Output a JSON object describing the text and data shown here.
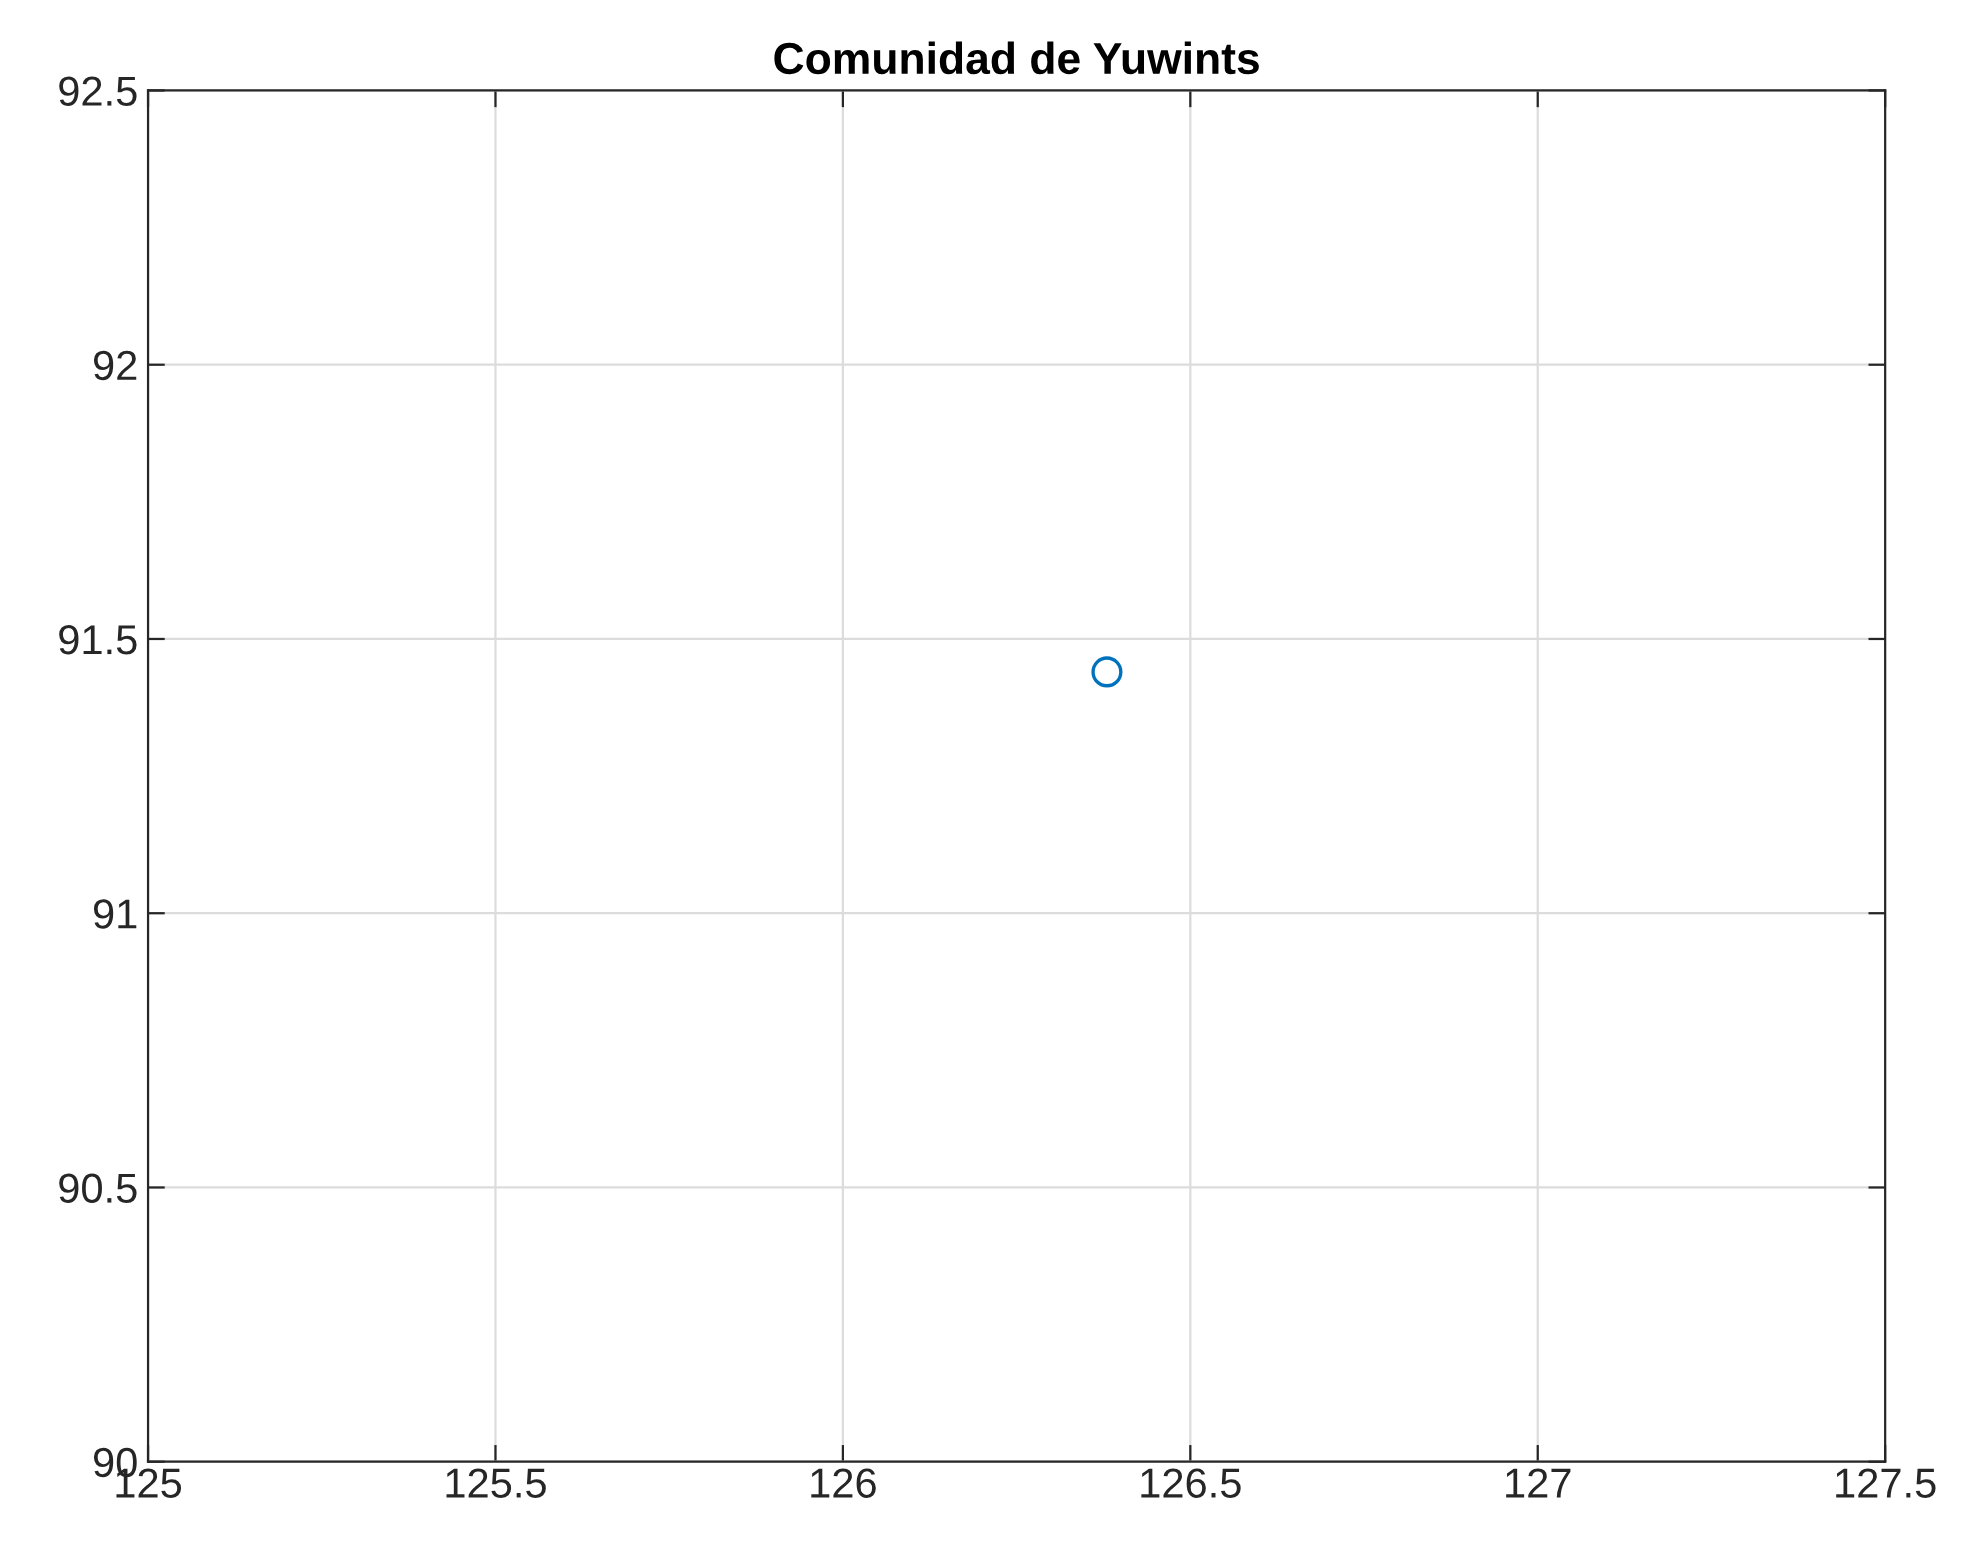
{
  "chart_data": {
    "type": "scatter",
    "title": "Comunidad de Yuwints",
    "x": [
      126.38
    ],
    "values": [
      91.44
    ],
    "color": "#0072bd",
    "marker": "circle",
    "xlim": [
      125,
      127.5
    ],
    "xticks": [
      125,
      125.5,
      126,
      126.5,
      127,
      127.5
    ],
    "ylim": [
      90,
      92.5
    ],
    "yticks": [
      90,
      90.5,
      91,
      91.5,
      92,
      92.5
    ],
    "grid": true
  }
}
